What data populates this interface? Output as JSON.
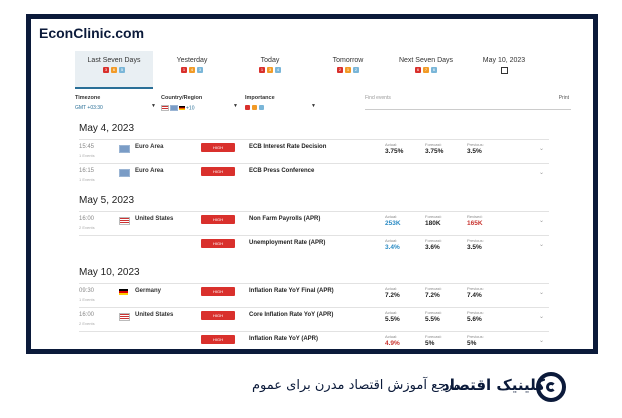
{
  "brand": "EconClinic.com",
  "tabs": [
    {
      "label": "Last Seven Days",
      "active": true,
      "dots": [
        "3",
        "6",
        "5"
      ]
    },
    {
      "label": "Yesterday",
      "active": false,
      "dots": [
        "1",
        "4",
        "3"
      ]
    },
    {
      "label": "Today",
      "active": false,
      "dots": [
        "1",
        "3",
        "4"
      ]
    },
    {
      "label": "Tomorrow",
      "active": false,
      "dots": [
        "2",
        "1",
        "2"
      ]
    },
    {
      "label": "Next Seven Days",
      "active": false,
      "dots": [
        "6",
        "7",
        "6"
      ]
    },
    {
      "label": "May 10, 2023",
      "active": false,
      "icon": "calendar-icon"
    }
  ],
  "filters": {
    "timezone_title": "Timezone",
    "timezone_value": "GMT +03:30",
    "country_title": "Country/Region",
    "country_value": "+10",
    "importance_title": "Importance",
    "search_placeholder": "Find events",
    "print_label": "Print"
  },
  "groups": [
    {
      "date": "May 4, 2023",
      "rows": [
        {
          "time": "15:45",
          "sub": "1 Events",
          "flag": "eu",
          "country": "Euro Area",
          "importance": "HIGH",
          "event": "ECB Interest Rate Decision",
          "actual_label": "Actual:",
          "actual": "3.75%",
          "forecast_label": "Forecast:",
          "forecast": "3.75%",
          "previous_label": "Previous:",
          "previous": "3.5%",
          "actual_trend": "",
          "previous_trend": ""
        },
        {
          "time": "16:15",
          "sub": "1 Events",
          "flag": "eu",
          "country": "Euro Area",
          "importance": "HIGH",
          "event": "ECB Press Conference",
          "actual_label": "",
          "actual": "",
          "forecast_label": "",
          "forecast": "",
          "previous_label": "",
          "previous": "",
          "actual_trend": "",
          "previous_trend": ""
        }
      ]
    },
    {
      "date": "May 5, 2023",
      "rows": [
        {
          "time": "16:00",
          "sub": "2 Events",
          "flag": "us",
          "country": "United States",
          "importance": "HIGH",
          "event": "Non Farm Payrolls (APR)",
          "actual_label": "Actual:",
          "actual": "253K",
          "forecast_label": "Forecast:",
          "forecast": "180K",
          "previous_label": "Revised:",
          "previous": "165K",
          "actual_trend": "up",
          "previous_trend": "down"
        },
        {
          "time": "",
          "sub": "",
          "flag": "",
          "country": "",
          "importance": "HIGH",
          "event": "Unemployment Rate (APR)",
          "actual_label": "Actual:",
          "actual": "3.4%",
          "forecast_label": "Forecast:",
          "forecast": "3.6%",
          "previous_label": "Previous:",
          "previous": "3.5%",
          "actual_trend": "up",
          "previous_trend": ""
        }
      ]
    },
    {
      "date": "May 10, 2023",
      "rows": [
        {
          "time": "09:30",
          "sub": "1 Events",
          "flag": "de",
          "country": "Germany",
          "importance": "HIGH",
          "event": "Inflation Rate YoY Final (APR)",
          "actual_label": "Actual:",
          "actual": "7.2%",
          "forecast_label": "Forecast:",
          "forecast": "7.2%",
          "previous_label": "Previous:",
          "previous": "7.4%",
          "actual_trend": "",
          "previous_trend": ""
        },
        {
          "time": "16:00",
          "sub": "2 Events",
          "flag": "us",
          "country": "United States",
          "importance": "HIGH",
          "event": "Core Inflation Rate YoY (APR)",
          "actual_label": "Actual:",
          "actual": "5.5%",
          "forecast_label": "Forecast:",
          "forecast": "5.5%",
          "previous_label": "Previous:",
          "previous": "5.6%",
          "actual_trend": "",
          "previous_trend": ""
        },
        {
          "time": "",
          "sub": "",
          "flag": "",
          "country": "",
          "importance": "HIGH",
          "event": "Inflation Rate YoY (APR)",
          "actual_label": "Actual:",
          "actual": "4.9%",
          "forecast_label": "Forecast:",
          "forecast": "5%",
          "previous_label": "Previous:",
          "previous": "5%",
          "actual_trend": "down",
          "previous_trend": ""
        }
      ]
    }
  ],
  "footer": {
    "title_fa": "کلینیک اقتصاد",
    "subtitle_fa": "مرجع آموزش اقتصاد مدرن برای عموم"
  },
  "colors": {
    "brand": "#0b1a3a",
    "high": "#d9302c",
    "medium": "#f29b27",
    "low": "#7ab6d8",
    "up": "#2a8bc4",
    "down": "#c8342f"
  }
}
